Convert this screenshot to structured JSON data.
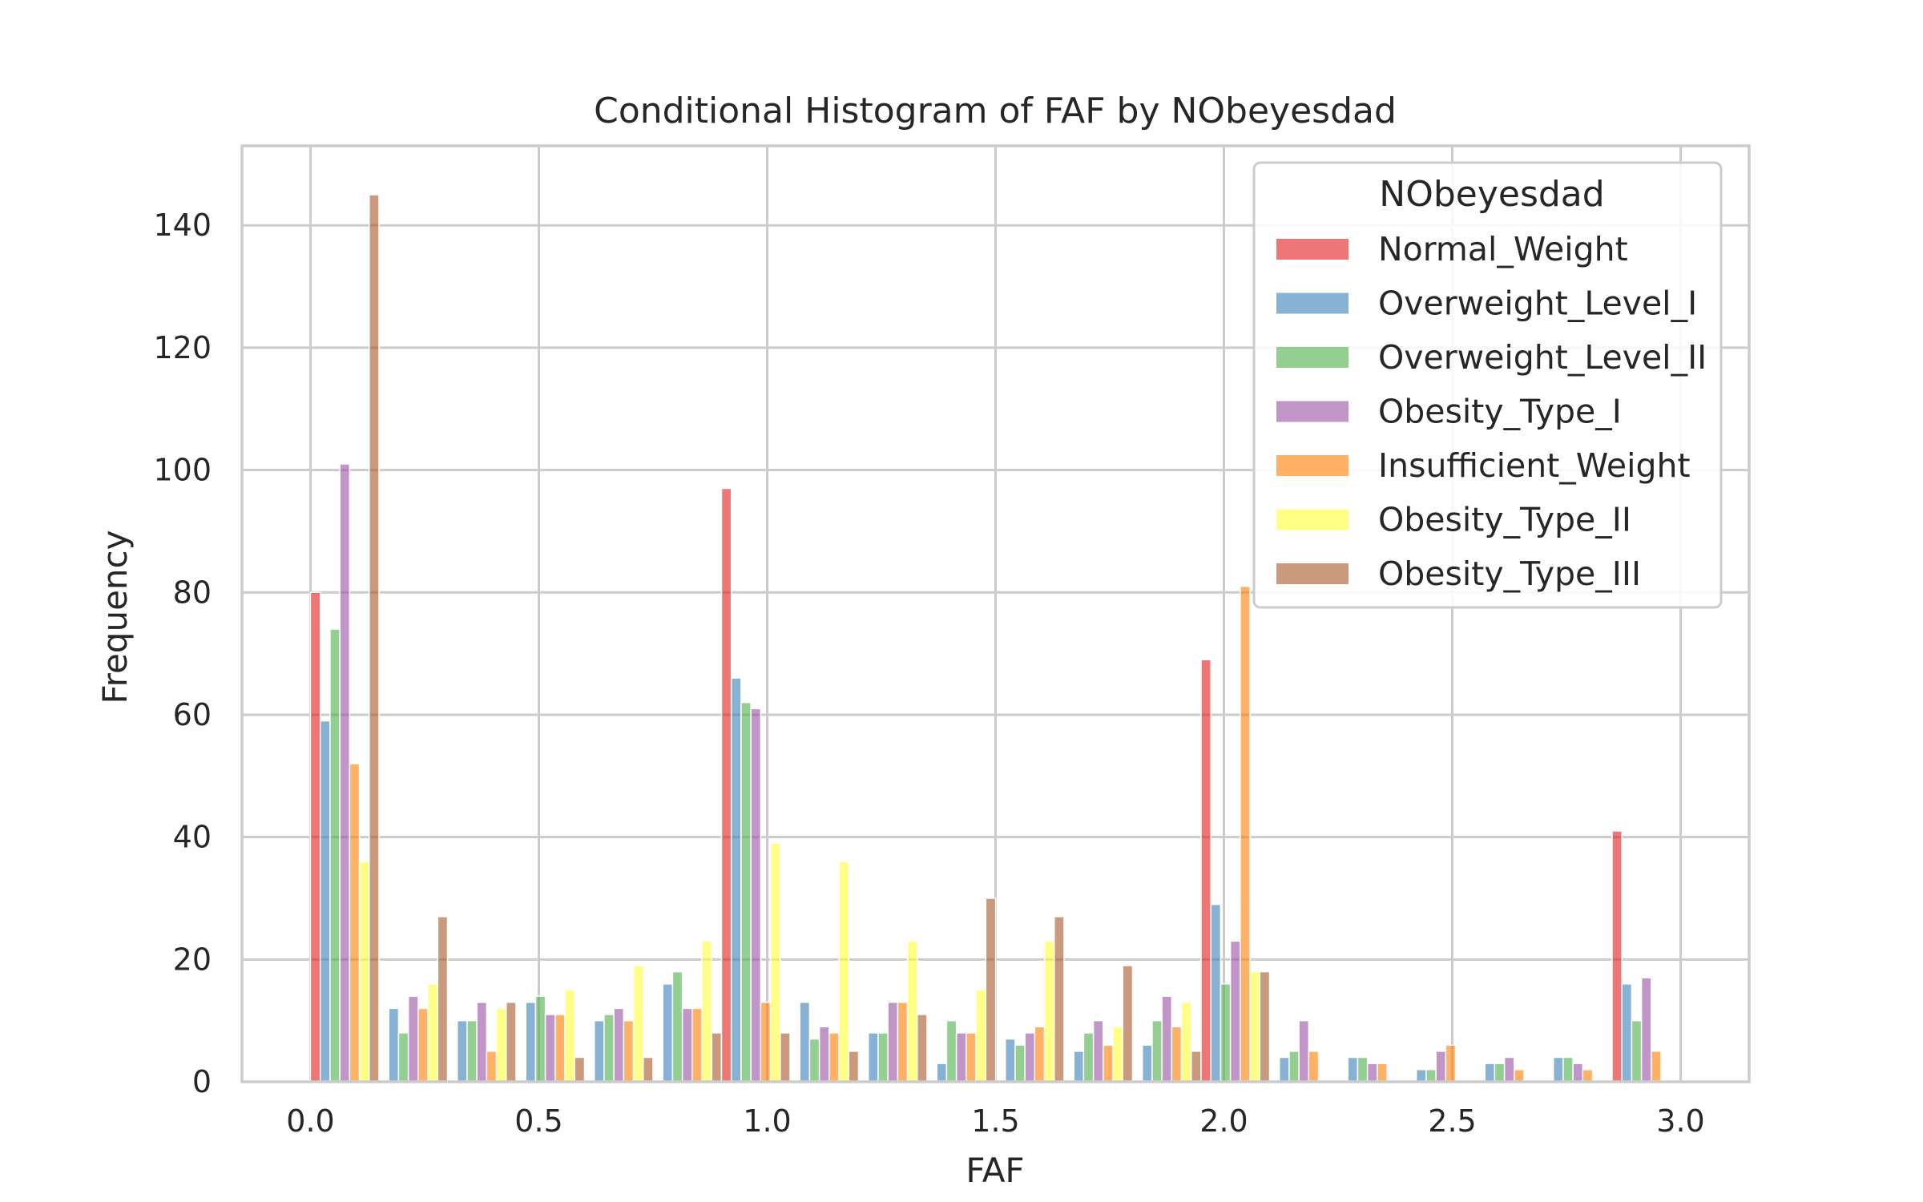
{
  "chart_data": {
    "type": "bar",
    "title": "Conditional Histogram of FAF by NObeyesdad",
    "xlabel": "FAF",
    "ylabel": "Frequency",
    "xlim": [
      -0.15,
      3.15
    ],
    "ylim": [
      0,
      153
    ],
    "xticks": [
      0.0,
      0.5,
      1.0,
      1.5,
      2.0,
      2.5,
      3.0
    ],
    "xtick_labels": [
      "0.0",
      "0.5",
      "1.0",
      "1.5",
      "2.0",
      "2.5",
      "3.0"
    ],
    "yticks": [
      0,
      20,
      40,
      60,
      80,
      100,
      120,
      140
    ],
    "ytick_labels": [
      "0",
      "20",
      "40",
      "60",
      "80",
      "100",
      "120",
      "140"
    ],
    "grid": true,
    "legend_title": "NObeyesdad",
    "legend_position": "top-right",
    "bin_edges": [
      0.0,
      0.15,
      0.3,
      0.45,
      0.6,
      0.75,
      0.9,
      1.05,
      1.2,
      1.35,
      1.5,
      1.65,
      1.8,
      1.95,
      2.1,
      2.25,
      2.4,
      2.55,
      2.7,
      2.85,
      3.0
    ],
    "series": [
      {
        "name": "Normal_Weight",
        "color": "#e41a1c",
        "values": [
          80,
          0,
          0,
          0,
          0,
          0,
          97,
          0,
          0,
          0,
          0,
          0,
          0,
          69,
          0,
          0,
          0,
          0,
          0,
          41
        ]
      },
      {
        "name": "Overweight_Level_I",
        "color": "#377eb8",
        "values": [
          59,
          12,
          10,
          13,
          10,
          16,
          66,
          13,
          8,
          3,
          7,
          5,
          6,
          29,
          4,
          4,
          2,
          3,
          4,
          16
        ]
      },
      {
        "name": "Overweight_Level_II",
        "color": "#4daf4a",
        "values": [
          74,
          8,
          10,
          14,
          11,
          18,
          62,
          7,
          8,
          10,
          6,
          8,
          10,
          16,
          5,
          4,
          2,
          3,
          4,
          10
        ]
      },
      {
        "name": "Obesity_Type_I",
        "color": "#984ea3",
        "values": [
          101,
          14,
          13,
          11,
          12,
          12,
          61,
          9,
          13,
          8,
          8,
          10,
          14,
          23,
          10,
          3,
          5,
          4,
          3,
          17
        ]
      },
      {
        "name": "Insufficient_Weight",
        "color": "#ff7f00",
        "values": [
          52,
          12,
          5,
          11,
          10,
          12,
          13,
          8,
          13,
          8,
          9,
          6,
          9,
          81,
          5,
          3,
          6,
          2,
          2,
          5
        ]
      },
      {
        "name": "Obesity_Type_II",
        "color": "#ffff33",
        "values": [
          36,
          16,
          12,
          15,
          19,
          23,
          39,
          36,
          23,
          15,
          23,
          9,
          13,
          18,
          0,
          0,
          0,
          0,
          0,
          0
        ]
      },
      {
        "name": "Obesity_Type_III",
        "color": "#a65628",
        "values": [
          145,
          27,
          13,
          4,
          4,
          8,
          8,
          5,
          11,
          30,
          27,
          19,
          5,
          18,
          0,
          0,
          0,
          0,
          0,
          0
        ]
      }
    ]
  }
}
